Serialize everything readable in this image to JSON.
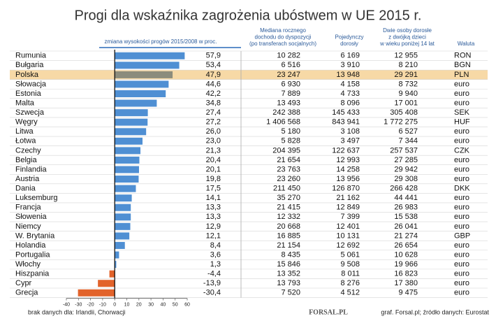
{
  "chart_data": {
    "type": "bar",
    "orientation": "horizontal",
    "title": "Progi dla wskaźnika zagrożenia ubóstwem w UE 2015 r.",
    "x_label": "zmiana wysokości progów 2015/2008 w proc.",
    "categories": [
      "Rumunia",
      "Bułgaria",
      "Polska",
      "Słowacja",
      "Estonia",
      "Malta",
      "Szwecja",
      "Węgry",
      "Litwa",
      "Łotwa",
      "Czechy",
      "Belgia",
      "Finlandia",
      "Austria",
      "Dania",
      "Luksemburg",
      "Francja",
      "Słowenia",
      "Niemcy",
      "W. Brytania",
      "Holandia",
      "Portugalia",
      "Włochy",
      "Hiszpania",
      "Cypr",
      "Grecja"
    ],
    "values": [
      57.9,
      53.4,
      47.9,
      44.6,
      42.2,
      34.8,
      27.4,
      27.2,
      26.0,
      23.0,
      21.3,
      20.4,
      20.1,
      19.8,
      17.5,
      14.1,
      13.3,
      13.3,
      12.9,
      12.1,
      8.4,
      3.6,
      1.3,
      -4.4,
      -13.9,
      -30.4
    ],
    "value_labels": [
      "57,9",
      "53,4",
      "47,9",
      "44,6",
      "42,2",
      "34,8",
      "27,4",
      "27,2",
      "26,0",
      "23,0",
      "21,3",
      "20,4",
      "20,1",
      "19,8",
      "17,5",
      "14,1",
      "13,3",
      "13,3",
      "12,9",
      "12,1",
      "8,4",
      "3,6",
      "1,3",
      "-4,4",
      "-13,9",
      "-30,4"
    ],
    "colors": [
      "#4f8fd3",
      "#4f8fd3",
      "#8c8c7c",
      "#4f8fd3",
      "#4f8fd3",
      "#4f8fd3",
      "#4f8fd3",
      "#4f8fd3",
      "#4f8fd3",
      "#4f8fd3",
      "#4f8fd3",
      "#4f8fd3",
      "#4f8fd3",
      "#4f8fd3",
      "#4f8fd3",
      "#4f8fd3",
      "#4f8fd3",
      "#4f8fd3",
      "#4f8fd3",
      "#4f8fd3",
      "#4f8fd3",
      "#4f8fd3",
      "#4f8fd3",
      "#e2632b",
      "#e2632b",
      "#e2632b"
    ],
    "xlim": [
      -40,
      60
    ],
    "xticks": [
      -40,
      -30,
      -20,
      -10,
      0,
      10,
      20,
      30,
      40,
      50,
      60
    ]
  },
  "table": {
    "headers": [
      [
        "Mediana rocznego",
        "dochodu do dyspozycji",
        "(po transferach socjalnych)"
      ],
      [
        "Pojedynczy",
        "dorosły"
      ],
      [
        "Dwie osoby dorosłe",
        "z dwójką dzieci",
        "w wieku poniżej 14 lat"
      ],
      [
        "Waluta"
      ]
    ],
    "highlight_row": 2,
    "highlight_color": "#f7d9a6",
    "rows": [
      [
        "10 282",
        "6 169",
        "12 955",
        "RON"
      ],
      [
        "6 516",
        "3 910",
        "8 210",
        "BGN"
      ],
      [
        "23 247",
        "13 948",
        "29 291",
        "PLN"
      ],
      [
        "6 930",
        "4 158",
        "8 732",
        "euro"
      ],
      [
        "7 889",
        "4 733",
        "9 940",
        "euro"
      ],
      [
        "13 493",
        "8 096",
        "17 001",
        "euro"
      ],
      [
        "242 388",
        "145 433",
        "305 408",
        "SEK"
      ],
      [
        "1 406 568",
        "843 941",
        "1 772 275",
        "HUF"
      ],
      [
        "5 180",
        "3 108",
        "6 527",
        "euro"
      ],
      [
        "5 828",
        "3 497",
        "7 344",
        "euro"
      ],
      [
        "204 395",
        "122 637",
        "257 537",
        "CZK"
      ],
      [
        "21 654",
        "12 993",
        "27 285",
        "euro"
      ],
      [
        "23 763",
        "14 258",
        "29 942",
        "euro"
      ],
      [
        "23 260",
        "13 956",
        "29 308",
        "euro"
      ],
      [
        "211 450",
        "126 870",
        "266 428",
        "DKK"
      ],
      [
        "35 270",
        "21 162",
        "44 441",
        "euro"
      ],
      [
        "21 415",
        "12 849",
        "26 983",
        "euro"
      ],
      [
        "12 332",
        "7 399",
        "15 538",
        "euro"
      ],
      [
        "20 668",
        "12 401",
        "26 041",
        "euro"
      ],
      [
        "16 885",
        "10 131",
        "21 274",
        "GBP"
      ],
      [
        "21 154",
        "12 692",
        "26 654",
        "euro"
      ],
      [
        "8 435",
        "5 061",
        "10 628",
        "euro"
      ],
      [
        "15 846",
        "9 508",
        "19 966",
        "euro"
      ],
      [
        "13 352",
        "8 011",
        "16 823",
        "euro"
      ],
      [
        "13 793",
        "8 276",
        "17 380",
        "euro"
      ],
      [
        "7 520",
        "4 512",
        "9 475",
        "euro"
      ]
    ]
  },
  "footer": {
    "note": "brak danych dla: Irlandii, Chorwacji",
    "logo": "FORSAL.PL",
    "source": "graf. Forsal.pl; źródło danych: Eurostat"
  }
}
